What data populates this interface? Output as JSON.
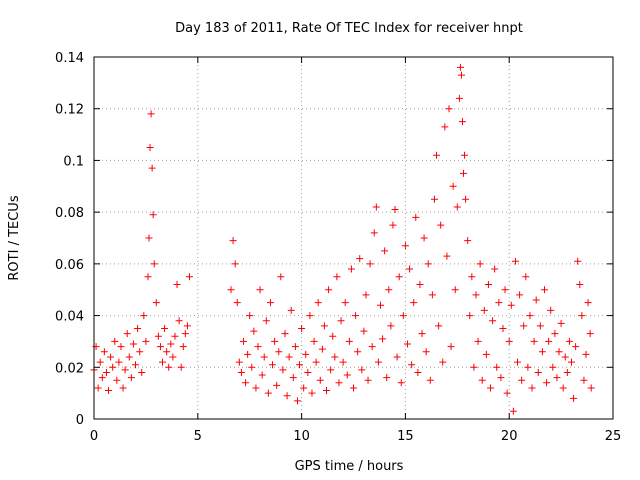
{
  "chart_data": {
    "type": "scatter",
    "title": "Day 183 of 2011, Rate Of TEC Index for receiver hnpt",
    "xlabel": "GPS time / hours",
    "ylabel": "ROTI / TECUs",
    "xlim": [
      0,
      25
    ],
    "ylim": [
      0,
      0.14
    ],
    "x_ticks": [
      "0",
      "5",
      "10",
      "15",
      "20",
      "25"
    ],
    "y_ticks": [
      "0",
      "0.02",
      "0.04",
      "0.06",
      "0.08",
      "0.1",
      "0.12",
      "0.14"
    ],
    "grid": true,
    "marker": "+",
    "colors": {
      "series": "#ff0000",
      "grid": "#a0a0a0",
      "axes": "#000000"
    },
    "series": [
      {
        "points": [
          [
            0.0,
            0.019
          ],
          [
            0.1,
            0.028
          ],
          [
            0.2,
            0.012
          ],
          [
            0.3,
            0.022
          ],
          [
            0.4,
            0.016
          ],
          [
            0.5,
            0.026
          ],
          [
            0.6,
            0.018
          ],
          [
            0.7,
            0.011
          ],
          [
            0.8,
            0.024
          ],
          [
            0.9,
            0.02
          ],
          [
            1.0,
            0.03
          ],
          [
            1.1,
            0.015
          ],
          [
            1.2,
            0.022
          ],
          [
            1.3,
            0.028
          ],
          [
            1.4,
            0.012
          ],
          [
            1.5,
            0.019
          ],
          [
            1.6,
            0.033
          ],
          [
            1.7,
            0.024
          ],
          [
            1.8,
            0.016
          ],
          [
            1.9,
            0.029
          ],
          [
            2.0,
            0.021
          ],
          [
            2.1,
            0.035
          ],
          [
            2.2,
            0.026
          ],
          [
            2.3,
            0.018
          ],
          [
            2.4,
            0.04
          ],
          [
            2.5,
            0.03
          ],
          [
            2.6,
            0.055
          ],
          [
            2.65,
            0.07
          ],
          [
            2.7,
            0.105
          ],
          [
            2.75,
            0.118
          ],
          [
            2.8,
            0.097
          ],
          [
            2.85,
            0.079
          ],
          [
            2.9,
            0.06
          ],
          [
            3.0,
            0.045
          ],
          [
            3.1,
            0.032
          ],
          [
            3.2,
            0.028
          ],
          [
            3.3,
            0.022
          ],
          [
            3.4,
            0.035
          ],
          [
            3.5,
            0.026
          ],
          [
            3.6,
            0.02
          ],
          [
            3.7,
            0.029
          ],
          [
            3.8,
            0.024
          ],
          [
            3.9,
            0.032
          ],
          [
            4.0,
            0.052
          ],
          [
            4.1,
            0.038
          ],
          [
            4.2,
            0.02
          ],
          [
            4.3,
            0.028
          ],
          [
            4.4,
            0.033
          ],
          [
            4.5,
            0.036
          ],
          [
            4.6,
            0.055
          ],
          [
            6.6,
            0.05
          ],
          [
            6.7,
            0.069
          ],
          [
            6.8,
            0.06
          ],
          [
            6.9,
            0.045
          ],
          [
            7.0,
            0.022
          ],
          [
            7.1,
            0.018
          ],
          [
            7.2,
            0.03
          ],
          [
            7.3,
            0.014
          ],
          [
            7.4,
            0.025
          ],
          [
            7.5,
            0.04
          ],
          [
            7.6,
            0.02
          ],
          [
            7.7,
            0.034
          ],
          [
            7.8,
            0.012
          ],
          [
            7.9,
            0.028
          ],
          [
            8.0,
            0.05
          ],
          [
            8.1,
            0.017
          ],
          [
            8.2,
            0.024
          ],
          [
            8.3,
            0.038
          ],
          [
            8.4,
            0.01
          ],
          [
            8.5,
            0.045
          ],
          [
            8.6,
            0.021
          ],
          [
            8.7,
            0.03
          ],
          [
            8.8,
            0.013
          ],
          [
            8.9,
            0.026
          ],
          [
            9.0,
            0.055
          ],
          [
            9.1,
            0.019
          ],
          [
            9.2,
            0.033
          ],
          [
            9.3,
            0.009
          ],
          [
            9.4,
            0.024
          ],
          [
            9.5,
            0.042
          ],
          [
            9.6,
            0.016
          ],
          [
            9.7,
            0.028
          ],
          [
            9.8,
            0.007
          ],
          [
            9.9,
            0.021
          ],
          [
            10.0,
            0.035
          ],
          [
            10.1,
            0.012
          ],
          [
            10.2,
            0.025
          ],
          [
            10.3,
            0.018
          ],
          [
            10.4,
            0.04
          ],
          [
            10.5,
            0.01
          ],
          [
            10.6,
            0.03
          ],
          [
            10.7,
            0.022
          ],
          [
            10.8,
            0.045
          ],
          [
            10.9,
            0.015
          ],
          [
            11.0,
            0.027
          ],
          [
            11.1,
            0.036
          ],
          [
            11.2,
            0.011
          ],
          [
            11.3,
            0.05
          ],
          [
            11.4,
            0.019
          ],
          [
            11.5,
            0.032
          ],
          [
            11.6,
            0.024
          ],
          [
            11.7,
            0.055
          ],
          [
            11.8,
            0.014
          ],
          [
            11.9,
            0.038
          ],
          [
            12.0,
            0.022
          ],
          [
            12.1,
            0.045
          ],
          [
            12.2,
            0.017
          ],
          [
            12.3,
            0.03
          ],
          [
            12.4,
            0.058
          ],
          [
            12.5,
            0.012
          ],
          [
            12.6,
            0.04
          ],
          [
            12.7,
            0.026
          ],
          [
            12.8,
            0.062
          ],
          [
            12.9,
            0.019
          ],
          [
            13.0,
            0.034
          ],
          [
            13.1,
            0.048
          ],
          [
            13.2,
            0.015
          ],
          [
            13.3,
            0.06
          ],
          [
            13.4,
            0.028
          ],
          [
            13.5,
            0.072
          ],
          [
            13.6,
            0.082
          ],
          [
            13.7,
            0.022
          ],
          [
            13.8,
            0.044
          ],
          [
            13.9,
            0.031
          ],
          [
            14.0,
            0.065
          ],
          [
            14.1,
            0.016
          ],
          [
            14.2,
            0.05
          ],
          [
            14.3,
            0.036
          ],
          [
            14.4,
            0.075
          ],
          [
            14.5,
            0.081
          ],
          [
            14.6,
            0.024
          ],
          [
            14.7,
            0.055
          ],
          [
            14.8,
            0.014
          ],
          [
            14.9,
            0.04
          ],
          [
            15.0,
            0.067
          ],
          [
            15.1,
            0.029
          ],
          [
            15.2,
            0.058
          ],
          [
            15.3,
            0.021
          ],
          [
            15.4,
            0.045
          ],
          [
            15.5,
            0.078
          ],
          [
            15.6,
            0.018
          ],
          [
            15.7,
            0.052
          ],
          [
            15.8,
            0.033
          ],
          [
            15.9,
            0.07
          ],
          [
            16.0,
            0.026
          ],
          [
            16.1,
            0.06
          ],
          [
            16.2,
            0.015
          ],
          [
            16.3,
            0.048
          ],
          [
            16.4,
            0.085
          ],
          [
            16.5,
            0.102
          ],
          [
            16.6,
            0.036
          ],
          [
            16.7,
            0.075
          ],
          [
            16.8,
            0.022
          ],
          [
            16.9,
            0.113
          ],
          [
            17.0,
            0.063
          ],
          [
            17.1,
            0.12
          ],
          [
            17.2,
            0.028
          ],
          [
            17.3,
            0.09
          ],
          [
            17.4,
            0.05
          ],
          [
            17.5,
            0.082
          ],
          [
            17.6,
            0.124
          ],
          [
            17.65,
            0.136
          ],
          [
            17.7,
            0.133
          ],
          [
            17.75,
            0.115
          ],
          [
            17.8,
            0.095
          ],
          [
            17.85,
            0.102
          ],
          [
            17.9,
            0.085
          ],
          [
            18.0,
            0.069
          ],
          [
            18.1,
            0.04
          ],
          [
            18.2,
            0.055
          ],
          [
            18.3,
            0.02
          ],
          [
            18.4,
            0.048
          ],
          [
            18.5,
            0.03
          ],
          [
            18.6,
            0.06
          ],
          [
            18.7,
            0.015
          ],
          [
            18.8,
            0.042
          ],
          [
            18.9,
            0.025
          ],
          [
            19.0,
            0.052
          ],
          [
            19.1,
            0.012
          ],
          [
            19.2,
            0.038
          ],
          [
            19.3,
            0.058
          ],
          [
            19.4,
            0.02
          ],
          [
            19.5,
            0.045
          ],
          [
            19.6,
            0.016
          ],
          [
            19.7,
            0.035
          ],
          [
            19.8,
            0.05
          ],
          [
            19.9,
            0.01
          ],
          [
            20.0,
            0.03
          ],
          [
            20.1,
            0.044
          ],
          [
            20.2,
            0.003
          ],
          [
            20.3,
            0.061
          ],
          [
            20.4,
            0.022
          ],
          [
            20.5,
            0.048
          ],
          [
            20.6,
            0.015
          ],
          [
            20.7,
            0.036
          ],
          [
            20.8,
            0.055
          ],
          [
            20.9,
            0.02
          ],
          [
            21.0,
            0.04
          ],
          [
            21.1,
            0.012
          ],
          [
            21.2,
            0.03
          ],
          [
            21.3,
            0.046
          ],
          [
            21.4,
            0.018
          ],
          [
            21.5,
            0.036
          ],
          [
            21.6,
            0.026
          ],
          [
            21.7,
            0.05
          ],
          [
            21.8,
            0.014
          ],
          [
            21.9,
            0.03
          ],
          [
            22.0,
            0.042
          ],
          [
            22.1,
            0.02
          ],
          [
            22.2,
            0.033
          ],
          [
            22.3,
            0.016
          ],
          [
            22.4,
            0.026
          ],
          [
            22.5,
            0.037
          ],
          [
            22.6,
            0.012
          ],
          [
            22.7,
            0.024
          ],
          [
            22.8,
            0.018
          ],
          [
            22.9,
            0.03
          ],
          [
            23.0,
            0.022
          ],
          [
            23.1,
            0.008
          ],
          [
            23.2,
            0.028
          ],
          [
            23.3,
            0.061
          ],
          [
            23.4,
            0.052
          ],
          [
            23.5,
            0.04
          ],
          [
            23.6,
            0.015
          ],
          [
            23.7,
            0.025
          ],
          [
            23.8,
            0.045
          ],
          [
            23.9,
            0.033
          ],
          [
            23.95,
            0.012
          ]
        ]
      }
    ]
  }
}
